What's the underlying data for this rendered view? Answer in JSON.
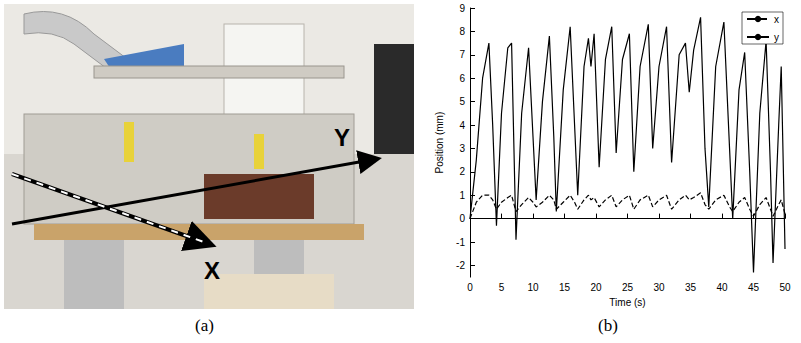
{
  "panel_a": {
    "caption": "(a)",
    "arrow_labels": [
      "Y",
      "X"
    ]
  },
  "chart_data": {
    "type": "line",
    "caption": "(b)",
    "x_label": "Time (s)",
    "y_label": "Position (mm)",
    "x": [
      0,
      1.0,
      2.0,
      3.0,
      3.6,
      4.2,
      5.0,
      6.0,
      6.6,
      7.3,
      8.2,
      9.3,
      10.0,
      10.5,
      11.5,
      12.6,
      13.3,
      13.7,
      14.8,
      15.9,
      16.6,
      17.1,
      18.1,
      18.8,
      19.2,
      19.7,
      20.5,
      21.5,
      22.5,
      23.2,
      24.2,
      25.3,
      26.0,
      27.0,
      28.3,
      29.0,
      30.0,
      31.2,
      32.0,
      33.2,
      34.2,
      34.8,
      35.5,
      36.6,
      37.3,
      37.9,
      39.0,
      40.3,
      41.2,
      41.7,
      42.7,
      43.6,
      44.4,
      45.0,
      46.0,
      47.0,
      47.7,
      48.1,
      49.0,
      49.4,
      50.0
    ],
    "series": [
      {
        "name": "x",
        "color": "#000000",
        "line_style": "dashed",
        "values": [
          0,
          0.7,
          1.0,
          1.0,
          0.8,
          0.4,
          0.7,
          0.9,
          1.0,
          0.3,
          0.6,
          0.9,
          0.7,
          0.5,
          0.7,
          1.0,
          0.8,
          0.4,
          0.7,
          1.0,
          0.7,
          0.4,
          0.8,
          1.0,
          0.8,
          0.9,
          0.5,
          0.8,
          1.0,
          0.5,
          0.8,
          1.0,
          0.4,
          0.8,
          1.0,
          0.5,
          0.8,
          1.0,
          0.4,
          0.8,
          1.0,
          0.8,
          0.9,
          1.1,
          0.6,
          0.4,
          0.8,
          1.0,
          0.5,
          0.3,
          0.7,
          0.9,
          0.4,
          0.1,
          0.6,
          0.9,
          0.4,
          0.1,
          0.6,
          0.8,
          0.2
        ]
      },
      {
        "name": "y",
        "color": "#000000",
        "line_style": "solid",
        "values": [
          0,
          2.5,
          6.0,
          7.5,
          4.0,
          -0.3,
          4.5,
          7.3,
          7.5,
          -0.9,
          4.5,
          7.3,
          3.5,
          0.8,
          5.0,
          7.8,
          3.5,
          0.3,
          5.5,
          8.2,
          4.0,
          1.0,
          6.5,
          7.7,
          6.5,
          7.9,
          2.2,
          6.8,
          8.2,
          2.8,
          6.8,
          7.9,
          2.0,
          6.5,
          8.3,
          3.0,
          6.5,
          8.2,
          2.4,
          7.0,
          7.5,
          5.4,
          7.2,
          8.6,
          3.0,
          0.5,
          6.5,
          8.4,
          3.0,
          0.0,
          5.5,
          7.1,
          2.0,
          -2.3,
          4.5,
          7.6,
          2.0,
          -1.9,
          4.0,
          6.5,
          -1.3
        ]
      }
    ],
    "xlim": [
      0,
      50
    ],
    "xticks": [
      0,
      5,
      10,
      15,
      20,
      25,
      30,
      35,
      40,
      45,
      50
    ],
    "ylim": [
      -2.5,
      9
    ],
    "yticks": [
      -2,
      -1,
      0,
      1,
      2,
      3,
      4,
      5,
      6,
      7,
      8,
      9
    ],
    "grid": false,
    "legend": "top-right"
  }
}
